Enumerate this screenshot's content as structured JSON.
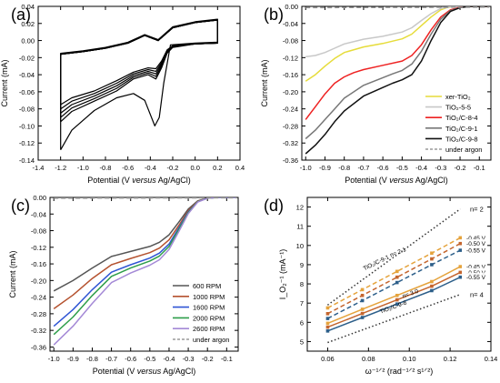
{
  "chart_data": [
    {
      "panel": "(a)",
      "type": "line",
      "xlabel": "Potential (V versus Ag/AgCl)",
      "ylabel": "Current (mA)",
      "xlim": [
        -1.4,
        0.4
      ],
      "ylim": [
        -0.14,
        0.04
      ],
      "xticks": [
        "-1.4",
        "-1.2",
        "-1.0",
        "-0.8",
        "-0.6",
        "-0.4",
        "-0.2",
        "0.0",
        "0.2",
        "0.4"
      ],
      "yticks": [
        "0.04",
        "0.02",
        "0.00",
        "-0.02",
        "-0.04",
        "-0.06",
        "-0.08",
        "-0.10",
        "-0.12",
        "-0.14"
      ],
      "series": [
        {
          "x": [
            -1.2,
            -1.1,
            -0.9,
            -0.7,
            -0.55,
            -0.45,
            -0.36,
            -0.32,
            -0.28,
            -0.22,
            0.0,
            0.2,
            0.2,
            0.0,
            -0.2,
            -0.33,
            -0.45,
            -0.6,
            -0.8,
            -1.0,
            -1.2,
            -1.2
          ],
          "y": [
            -0.128,
            -0.105,
            -0.082,
            -0.067,
            -0.062,
            -0.07,
            -0.1,
            -0.09,
            -0.05,
            -0.005,
            -0.003,
            -0.002,
            0.025,
            0.022,
            0.016,
            0.001,
            0.007,
            -0.002,
            -0.008,
            -0.012,
            -0.015,
            -0.128
          ]
        },
        {
          "x": [
            -1.2,
            -1.1,
            -0.9,
            -0.7,
            -0.55,
            -0.42,
            -0.35,
            -0.3,
            -0.25,
            -0.2,
            0.0,
            0.2,
            0.2,
            0.0,
            -0.2,
            -0.33,
            -0.45,
            -0.6,
            -0.8,
            -1.0,
            -1.2,
            -1.2
          ],
          "y": [
            -0.095,
            -0.083,
            -0.071,
            -0.059,
            -0.045,
            -0.04,
            -0.045,
            -0.032,
            -0.015,
            -0.008,
            -0.004,
            -0.003,
            0.024,
            0.021,
            0.015,
            0.0,
            0.006,
            -0.003,
            -0.009,
            -0.013,
            -0.016,
            -0.095
          ]
        },
        {
          "x": [
            -1.2,
            -1.1,
            -0.9,
            -0.7,
            -0.55,
            -0.42,
            -0.35,
            -0.3,
            -0.25,
            -0.2,
            0.0,
            0.2,
            0.2,
            0.0,
            -0.2,
            -0.33,
            -0.45,
            -0.6,
            -0.8,
            -1.0,
            -1.2,
            -1.2
          ],
          "y": [
            -0.09,
            -0.079,
            -0.068,
            -0.056,
            -0.043,
            -0.038,
            -0.042,
            -0.03,
            -0.014,
            -0.007,
            -0.004,
            -0.003,
            0.024,
            0.021,
            0.015,
            0.0,
            0.006,
            -0.003,
            -0.009,
            -0.013,
            -0.016,
            -0.09
          ]
        },
        {
          "x": [
            -1.2,
            -1.1,
            -0.9,
            -0.7,
            -0.55,
            -0.42,
            -0.35,
            -0.3,
            -0.25,
            -0.2,
            0.0,
            0.2,
            0.2,
            0.0,
            -0.2,
            -0.33,
            -0.45,
            -0.6,
            -0.8,
            -1.0,
            -1.2,
            -1.2
          ],
          "y": [
            -0.085,
            -0.075,
            -0.065,
            -0.053,
            -0.041,
            -0.036,
            -0.039,
            -0.028,
            -0.013,
            -0.007,
            -0.004,
            -0.003,
            0.024,
            0.021,
            0.015,
            0.0,
            0.006,
            -0.003,
            -0.009,
            -0.013,
            -0.016,
            -0.085
          ]
        },
        {
          "x": [
            -1.2,
            -1.1,
            -0.9,
            -0.7,
            -0.55,
            -0.42,
            -0.35,
            -0.3,
            -0.25,
            -0.2,
            0.0,
            0.2,
            0.2,
            0.0,
            -0.2,
            -0.33,
            -0.45,
            -0.6,
            -0.8,
            -1.0,
            -1.2,
            -1.2
          ],
          "y": [
            -0.08,
            -0.071,
            -0.062,
            -0.05,
            -0.039,
            -0.034,
            -0.036,
            -0.026,
            -0.012,
            -0.006,
            -0.004,
            -0.003,
            0.024,
            0.021,
            0.015,
            0.0,
            0.006,
            -0.003,
            -0.009,
            -0.013,
            -0.016,
            -0.08
          ]
        },
        {
          "x": [
            -1.2,
            -1.1,
            -0.9,
            -0.7,
            -0.55,
            -0.42,
            -0.35,
            -0.3,
            -0.25,
            -0.2,
            0.0,
            0.2,
            0.2,
            0.0,
            -0.2,
            -0.33,
            -0.45,
            -0.6,
            -0.8,
            -1.0,
            -1.2,
            -1.2
          ],
          "y": [
            -0.075,
            -0.067,
            -0.059,
            -0.047,
            -0.037,
            -0.032,
            -0.033,
            -0.024,
            -0.011,
            -0.006,
            -0.004,
            -0.003,
            0.024,
            0.021,
            0.015,
            0.0,
            0.006,
            -0.003,
            -0.009,
            -0.013,
            -0.016,
            -0.075
          ]
        }
      ]
    },
    {
      "panel": "(b)",
      "type": "line",
      "xlabel": "Potential (V versus Ag/AgCl)",
      "ylabel": "Current (mA)",
      "xlim": [
        -1.02,
        -0.04
      ],
      "ylim": [
        -0.36,
        0.0
      ],
      "xticks": [
        "-1.0",
        "-0.9",
        "-0.8",
        "-0.7",
        "-0.6",
        "-0.5",
        "-0.4",
        "-0.3",
        "-0.2",
        "-0.1"
      ],
      "yticks": [
        "0.00",
        "-0.04",
        "-0.08",
        "-0.12",
        "-0.16",
        "-0.20",
        "-0.24",
        "-0.28",
        "-0.32",
        "-0.36"
      ],
      "legend_position": "bottom-right",
      "series": [
        {
          "name": "xer-TiO₂",
          "color": "#e6dc3a",
          "dash": false,
          "x": [
            -1.0,
            -0.95,
            -0.9,
            -0.85,
            -0.8,
            -0.7,
            -0.6,
            -0.5,
            -0.45,
            -0.4,
            -0.35,
            -0.3,
            -0.27,
            -0.22,
            -0.15,
            -0.05
          ],
          "y": [
            -0.175,
            -0.16,
            -0.14,
            -0.122,
            -0.108,
            -0.095,
            -0.087,
            -0.076,
            -0.065,
            -0.045,
            -0.025,
            -0.008,
            -0.003,
            0.0,
            0.0,
            0.0
          ]
        },
        {
          "name": "TiO₂-5-5",
          "color": "#c8c8c8",
          "dash": false,
          "x": [
            -1.0,
            -0.95,
            -0.9,
            -0.85,
            -0.8,
            -0.7,
            -0.6,
            -0.5,
            -0.45,
            -0.4,
            -0.35,
            -0.3,
            -0.25,
            -0.15,
            -0.05
          ],
          "y": [
            -0.118,
            -0.115,
            -0.108,
            -0.098,
            -0.088,
            -0.077,
            -0.07,
            -0.06,
            -0.05,
            -0.033,
            -0.017,
            -0.005,
            -0.001,
            0.0,
            0.0
          ]
        },
        {
          "name": "TiO₂/C-8-4",
          "color": "#ee2222",
          "dash": false,
          "x": [
            -1.0,
            -0.95,
            -0.9,
            -0.85,
            -0.8,
            -0.75,
            -0.7,
            -0.6,
            -0.5,
            -0.45,
            -0.4,
            -0.35,
            -0.3,
            -0.25,
            -0.2,
            -0.15,
            -0.05
          ],
          "y": [
            -0.265,
            -0.235,
            -0.205,
            -0.18,
            -0.165,
            -0.155,
            -0.148,
            -0.138,
            -0.128,
            -0.115,
            -0.09,
            -0.055,
            -0.025,
            -0.008,
            -0.002,
            0.0,
            0.0
          ]
        },
        {
          "name": "TiO₂/C-9-1",
          "color": "#777777",
          "dash": false,
          "x": [
            -1.0,
            -0.95,
            -0.9,
            -0.85,
            -0.8,
            -0.7,
            -0.6,
            -0.55,
            -0.5,
            -0.45,
            -0.4,
            -0.35,
            -0.3,
            -0.25,
            -0.2,
            -0.15,
            -0.05
          ],
          "y": [
            -0.31,
            -0.29,
            -0.265,
            -0.24,
            -0.215,
            -0.185,
            -0.167,
            -0.158,
            -0.15,
            -0.135,
            -0.105,
            -0.065,
            -0.03,
            -0.01,
            -0.003,
            0.0,
            0.0
          ]
        },
        {
          "name": "TiO₂/C-9-8",
          "color": "#111111",
          "dash": false,
          "x": [
            -1.0,
            -0.95,
            -0.9,
            -0.85,
            -0.8,
            -0.7,
            -0.6,
            -0.55,
            -0.5,
            -0.45,
            -0.4,
            -0.35,
            -0.3,
            -0.25,
            -0.2,
            -0.15,
            -0.05
          ],
          "y": [
            -0.345,
            -0.325,
            -0.3,
            -0.27,
            -0.245,
            -0.21,
            -0.19,
            -0.18,
            -0.172,
            -0.16,
            -0.128,
            -0.08,
            -0.038,
            -0.012,
            -0.003,
            0.0,
            0.0
          ]
        },
        {
          "name": "under argon",
          "color": "#9a9a9a",
          "dash": true,
          "x": [
            -1.0,
            -0.05
          ],
          "y": [
            -0.003,
            -0.002
          ]
        }
      ]
    },
    {
      "panel": "(c)",
      "type": "line",
      "xlabel": "Potential (V versus Ag/AgCl)",
      "ylabel": "Current (mA)",
      "xlim": [
        -1.02,
        -0.04
      ],
      "ylim": [
        -0.37,
        0.0
      ],
      "xticks": [
        "-1.0",
        "-0.9",
        "-0.8",
        "-0.7",
        "-0.6",
        "-0.5",
        "-0.4",
        "-0.3",
        "-0.2",
        "-0.1"
      ],
      "yticks": [
        "0.00",
        "-0.04",
        "-0.08",
        "-0.12",
        "-0.16",
        "-0.20",
        "-0.24",
        "-0.28",
        "-0.32",
        "-0.36"
      ],
      "legend_position": "bottom-right",
      "series": [
        {
          "name": "600 RPM",
          "color": "#555555",
          "dash": false,
          "x": [
            -1.0,
            -0.9,
            -0.8,
            -0.7,
            -0.6,
            -0.5,
            -0.45,
            -0.4,
            -0.35,
            -0.3,
            -0.25,
            -0.2,
            -0.15,
            -0.05
          ],
          "y": [
            -0.225,
            -0.2,
            -0.17,
            -0.142,
            -0.13,
            -0.118,
            -0.108,
            -0.09,
            -0.06,
            -0.028,
            -0.008,
            -0.002,
            0.0,
            0.0
          ]
        },
        {
          "name": "1000 RPM",
          "color": "#b5522f",
          "dash": false,
          "x": [
            -1.0,
            -0.9,
            -0.8,
            -0.7,
            -0.6,
            -0.5,
            -0.45,
            -0.4,
            -0.35,
            -0.3,
            -0.25,
            -0.2,
            -0.15,
            -0.05
          ],
          "y": [
            -0.268,
            -0.235,
            -0.195,
            -0.162,
            -0.147,
            -0.133,
            -0.122,
            -0.102,
            -0.068,
            -0.032,
            -0.009,
            -0.002,
            0.0,
            0.0
          ]
        },
        {
          "name": "1600 RPM",
          "color": "#2f55d4",
          "dash": false,
          "x": [
            -1.0,
            -0.9,
            -0.8,
            -0.7,
            -0.6,
            -0.5,
            -0.45,
            -0.4,
            -0.35,
            -0.3,
            -0.25,
            -0.2,
            -0.15,
            -0.05
          ],
          "y": [
            -0.31,
            -0.27,
            -0.222,
            -0.18,
            -0.162,
            -0.146,
            -0.134,
            -0.112,
            -0.074,
            -0.035,
            -0.01,
            -0.002,
            0.0,
            0.0
          ]
        },
        {
          "name": "2000 RPM",
          "color": "#2e9e4a",
          "dash": false,
          "x": [
            -1.0,
            -0.9,
            -0.8,
            -0.7,
            -0.6,
            -0.5,
            -0.45,
            -0.4,
            -0.35,
            -0.3,
            -0.25,
            -0.2,
            -0.15,
            -0.05
          ],
          "y": [
            -0.33,
            -0.288,
            -0.236,
            -0.19,
            -0.17,
            -0.153,
            -0.141,
            -0.118,
            -0.078,
            -0.037,
            -0.01,
            -0.002,
            0.0,
            0.0
          ]
        },
        {
          "name": "2600 RPM",
          "color": "#a489d6",
          "dash": false,
          "x": [
            -1.0,
            -0.9,
            -0.8,
            -0.7,
            -0.6,
            -0.5,
            -0.45,
            -0.4,
            -0.35,
            -0.3,
            -0.25,
            -0.2,
            -0.15,
            -0.05
          ],
          "y": [
            -0.355,
            -0.31,
            -0.255,
            -0.205,
            -0.182,
            -0.163,
            -0.15,
            -0.125,
            -0.083,
            -0.039,
            -0.011,
            -0.002,
            0.0,
            0.0
          ]
        },
        {
          "name": "under argon",
          "color": "#9a9a9a",
          "dash": true,
          "x": [
            -1.0,
            -0.05
          ],
          "y": [
            -0.002,
            -0.001
          ]
        }
      ]
    },
    {
      "panel": "(d)",
      "type": "scatter",
      "xlabel": "ω⁻¹ᐟ² (rad⁻¹ᐟ² s¹ᐟ²)",
      "ylabel": "I_O₂⁻¹ (mA⁻¹)",
      "xlim": [
        0.05,
        0.14
      ],
      "ylim": [
        4.5,
        12.5
      ],
      "xticks": [
        "0.06",
        "0.08",
        "0.10",
        "0.12",
        "0.14"
      ],
      "yticks": [
        "5",
        "6",
        "7",
        "8",
        "9",
        "10",
        "11",
        "12"
      ],
      "annotations": [
        "n= 2",
        "n= 4",
        "n= 2.1",
        "n= 3.0",
        "TiO₂/C-9-1",
        "TiO₂/C-9-8"
      ],
      "series": [
        {
          "name": "n= 2",
          "color": "#333333",
          "style": "dotted",
          "x": [
            0.06,
            0.125
          ],
          "y": [
            6.9,
            11.9
          ]
        },
        {
          "name": "n= 4",
          "color": "#333333",
          "style": "dotted",
          "x": [
            0.06,
            0.125
          ],
          "y": [
            4.95,
            7.45
          ]
        },
        {
          "name": "-0.45 V",
          "color": "#e5a33c",
          "style": "dashed",
          "x": [
            0.06,
            0.077,
            0.094,
            0.111,
            0.125
          ],
          "y": [
            6.75,
            7.7,
            8.65,
            9.6,
            10.4
          ]
        },
        {
          "name": "-0.50 V",
          "color": "#c4652e",
          "style": "dashed",
          "x": [
            0.06,
            0.077,
            0.094,
            0.111,
            0.125
          ],
          "y": [
            6.45,
            7.4,
            8.35,
            9.3,
            10.1
          ]
        },
        {
          "name": "-0.55 V",
          "color": "#2d5f8a",
          "style": "dashed",
          "x": [
            0.06,
            0.077,
            0.094,
            0.111,
            0.125
          ],
          "y": [
            6.2,
            7.13,
            8.07,
            9.0,
            9.75
          ]
        },
        {
          "name": "-0.45 V",
          "color": "#e5a33c",
          "style": "solid",
          "x": [
            0.06,
            0.077,
            0.094,
            0.111,
            0.125
          ],
          "y": [
            5.95,
            6.68,
            7.4,
            8.12,
            8.9
          ]
        },
        {
          "name": "-0.50 V",
          "color": "#c4652e",
          "style": "solid",
          "x": [
            0.06,
            0.077,
            0.094,
            0.111,
            0.125
          ],
          "y": [
            5.75,
            6.46,
            7.17,
            7.88,
            8.6
          ]
        },
        {
          "name": "-0.55 V",
          "color": "#2d5f8a",
          "style": "solid",
          "x": [
            0.06,
            0.077,
            0.094,
            0.111,
            0.125
          ],
          "y": [
            5.55,
            6.25,
            6.95,
            7.65,
            8.35
          ]
        }
      ]
    }
  ]
}
